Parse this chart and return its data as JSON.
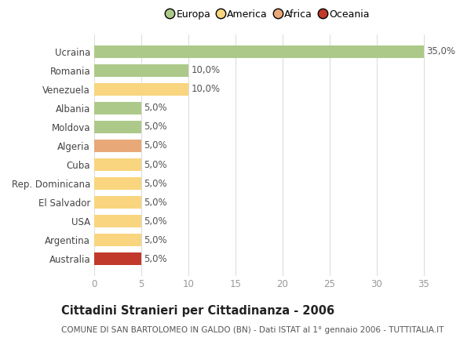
{
  "countries": [
    "Ucraina",
    "Romania",
    "Venezuela",
    "Albania",
    "Moldova",
    "Algeria",
    "Cuba",
    "Rep. Dominicana",
    "El Salvador",
    "USA",
    "Argentina",
    "Australia"
  ],
  "values": [
    35.0,
    10.0,
    10.0,
    5.0,
    5.0,
    5.0,
    5.0,
    5.0,
    5.0,
    5.0,
    5.0,
    5.0
  ],
  "continents": [
    "Europa",
    "Europa",
    "America",
    "Europa",
    "Europa",
    "Africa",
    "America",
    "America",
    "America",
    "America",
    "America",
    "Oceania"
  ],
  "colors": {
    "Europa": "#adc98a",
    "America": "#f8d57e",
    "Africa": "#e8a878",
    "Oceania": "#c0392b"
  },
  "legend_order": [
    "Europa",
    "America",
    "Africa",
    "Oceania"
  ],
  "legend_colors": [
    "#adc98a",
    "#f8d57e",
    "#e8a878",
    "#c0392b"
  ],
  "title": "Cittadini Stranieri per Cittadinanza - 2006",
  "subtitle": "COMUNE DI SAN BARTOLOMEO IN GALDO (BN) - Dati ISTAT al 1° gennaio 2006 - TUTTITALIA.IT",
  "xlim": [
    0,
    37
  ],
  "xticks": [
    0,
    5,
    10,
    15,
    20,
    25,
    30,
    35
  ],
  "background_color": "#ffffff",
  "bar_height": 0.65,
  "label_fontsize": 8.5,
  "tick_fontsize": 8.5,
  "title_fontsize": 10.5,
  "subtitle_fontsize": 7.5
}
